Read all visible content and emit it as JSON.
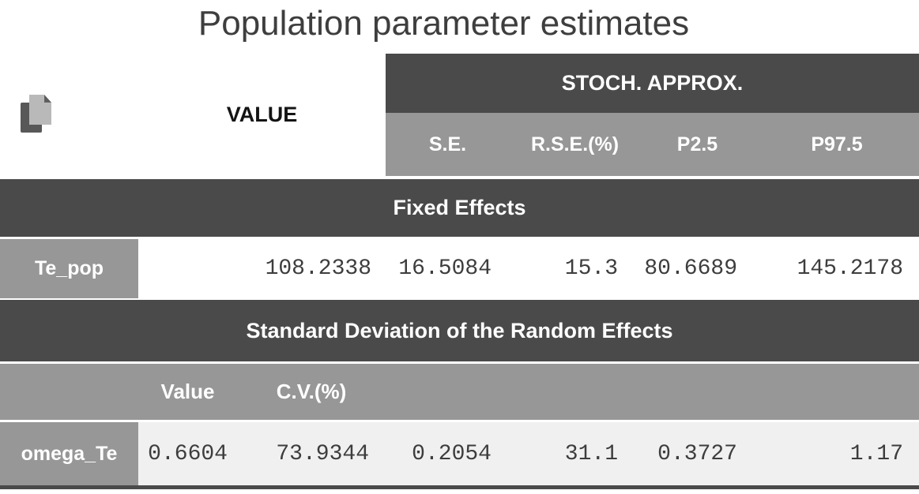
{
  "title": "Population parameter estimates",
  "header": {
    "value_label": "VALUE",
    "stoch_label": "STOCH. APPROX.",
    "sub_columns": [
      "S.E.",
      "R.S.E.(%)",
      "P2.5",
      "P97.5"
    ]
  },
  "fixed_effects": {
    "label": "Fixed Effects",
    "row": {
      "name": "Te_pop",
      "value": "108.2338",
      "se": "16.5084",
      "rse": "15.3",
      "p25": "80.6689",
      "p975": "145.2178"
    }
  },
  "random_effects": {
    "label": "Standard Deviation of the Random Effects",
    "sub_columns": {
      "value": "Value",
      "cv": "C.V.(%)"
    },
    "row": {
      "name": "omega_Te",
      "value": "0.6604",
      "cv": "73.9344",
      "se": "0.2054",
      "rse": "31.1",
      "p25": "0.3727",
      "p975": "1.17"
    }
  },
  "icons": {
    "copy": "copy-pages-icon"
  },
  "colors": {
    "band_dark": "#4a4a4a",
    "band_gray": "#979797",
    "row_alt": "#f0f0f0",
    "value_text": "#3d3d3d",
    "header_text": "#ffffff",
    "title_text": "#3e3e3e"
  }
}
